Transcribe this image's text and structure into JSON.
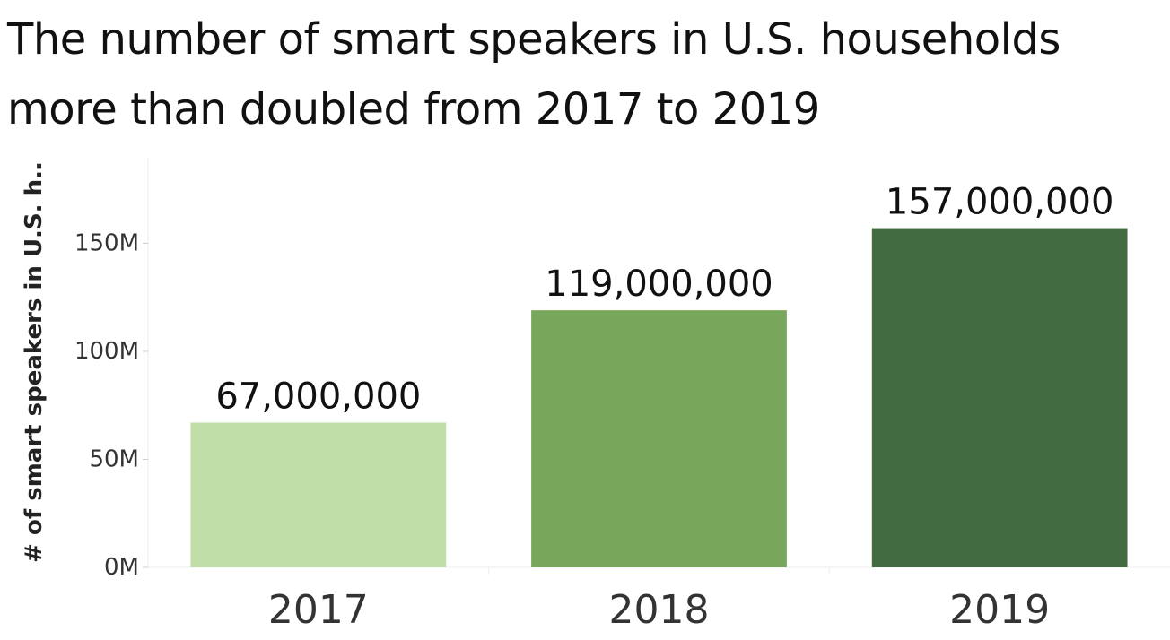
{
  "chart_data": {
    "type": "bar",
    "title_lines": [
      "The number of smart speakers in U.S. households",
      "more than doubled from 2017 to 2019"
    ],
    "ylabel": "# of smart speakers in U.S. h..",
    "xlabel": "",
    "categories": [
      "2017",
      "2018",
      "2019"
    ],
    "values": [
      67000000,
      119000000,
      157000000
    ],
    "data_labels": [
      "67,000,000",
      "119,000,000",
      "157,000,000"
    ],
    "colors": [
      "#c0dea8",
      "#78a65b",
      "#436b42"
    ],
    "ylim": [
      0,
      190000000
    ],
    "yticks": [
      0,
      50000000,
      100000000,
      150000000
    ],
    "ytick_labels": [
      "0M",
      "50M",
      "100M",
      "150M"
    ],
    "grid": false,
    "legend": "none"
  }
}
